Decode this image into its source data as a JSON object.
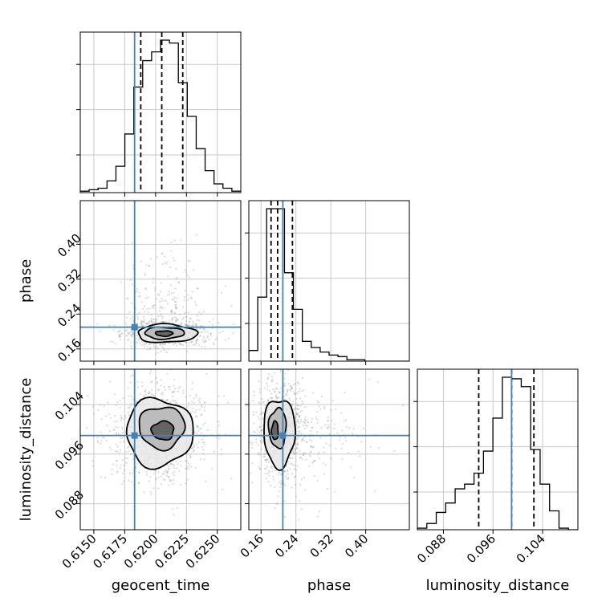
{
  "chart_data": {
    "type": "corner",
    "parameters": [
      "geocent_time",
      "phase",
      "luminosity_distance"
    ],
    "truths": {
      "geocent_time": 0.6183,
      "phase": 0.21,
      "luminosity_distance": 0.099
    },
    "colors": {
      "truth": "#4682b4",
      "hist": "#000000",
      "grid": "#c8c8c8",
      "points": "#999999"
    },
    "axes": {
      "geocent_time": {
        "range": [
          0.6139,
          0.6269
        ],
        "ticks": [
          0.615,
          0.6175,
          0.62,
          0.6225,
          0.625
        ],
        "tick_labels": [
          "0.6150",
          "0.6175",
          "0.6200",
          "0.6225",
          "0.6250"
        ],
        "label": "geocent_time"
      },
      "phase": {
        "range": [
          0.132,
          0.5
        ],
        "ticks": [
          0.16,
          0.24,
          0.32,
          0.4
        ],
        "tick_labels": [
          "0.16",
          "0.24",
          "0.32",
          "0.40"
        ],
        "label": "phase"
      },
      "luminosity_distance": {
        "range": [
          0.0838,
          0.1097
        ],
        "ticks": [
          0.088,
          0.096,
          0.104
        ],
        "tick_labels": [
          "0.088",
          "0.096",
          "0.104"
        ],
        "label": "luminosity_distance"
      }
    },
    "quantiles": {
      "geocent_time": [
        0.6188,
        0.6205,
        0.6222
      ],
      "phase": [
        0.183,
        0.198,
        0.232
      ],
      "luminosity_distance": [
        0.0937,
        0.099,
        0.1026
      ]
    },
    "histograms": {
      "geocent_time": [
        1,
        2,
        3,
        8,
        18,
        40,
        72,
        90,
        96,
        104,
        102,
        75,
        52,
        30,
        15,
        6,
        3,
        1
      ],
      "phase": [
        7,
        42,
        100,
        100,
        58,
        34,
        13,
        9,
        6,
        4,
        3,
        1,
        1,
        0,
        0,
        0,
        0,
        0
      ],
      "luminosity_distance": [
        1,
        4,
        11,
        17,
        26,
        29,
        36,
        50,
        71,
        97,
        96,
        91,
        51,
        29,
        12,
        1,
        0
      ]
    },
    "contours": {
      "phase_vs_geocent_time": [
        {
          "center": [
            0.6209,
            0.1955
          ],
          "radii": [
            0.0024,
            0.021
          ],
          "level": 1
        },
        {
          "center": [
            0.6207,
            0.1965
          ],
          "radii": [
            0.0016,
            0.0135
          ],
          "level": 2
        },
        {
          "center": [
            0.6207,
            0.1955
          ],
          "radii": [
            0.0007,
            0.006
          ],
          "level": 3
        }
      ],
      "luminosity_distance_vs_geocent_time": [
        {
          "center": [
            0.6203,
            0.0995
          ],
          "radii": [
            0.0027,
            0.0055
          ],
          "level": 1
        },
        {
          "center": [
            0.6205,
            0.1003
          ],
          "radii": [
            0.00185,
            0.0034
          ],
          "level": 2
        },
        {
          "center": [
            0.6206,
            0.0998
          ],
          "radii": [
            0.0009,
            0.0015
          ],
          "level": 3
        }
      ],
      "luminosity_distance_vs_phase": [
        {
          "center": [
            0.202,
            0.0995
          ],
          "radii": [
            0.036,
            0.0055
          ],
          "level": 1
        },
        {
          "center": [
            0.198,
            0.1002
          ],
          "radii": [
            0.02,
            0.0032
          ],
          "level": 2
        },
        {
          "center": [
            0.192,
            0.0998
          ],
          "radii": [
            0.0075,
            0.0015
          ],
          "level": 3
        }
      ]
    }
  }
}
